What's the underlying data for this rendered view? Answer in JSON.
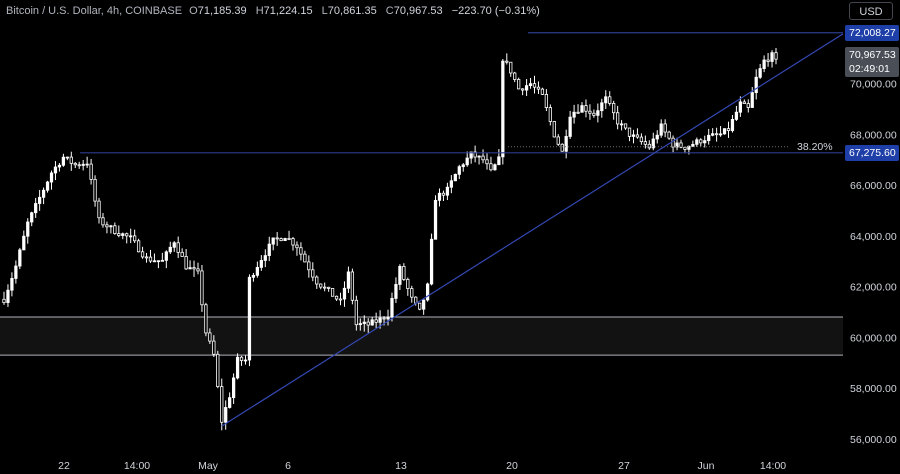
{
  "legend": {
    "title": "Bitcoin / U.S. Dollar, 4h, COINBASE",
    "o_label": "O",
    "o_value": "71,185.39",
    "h_label": "H",
    "h_value": "71,224.15",
    "l_label": "L",
    "l_value": "70,861.35",
    "c_label": "C",
    "c_value": "70,967.53",
    "change": "−223.70 (−0.31%)"
  },
  "currency_button": "USD",
  "price_tags": {
    "resistance": "72,008.27",
    "last_price": "70,967.53",
    "countdown": "02:49:01",
    "fib_level": "67,275.60"
  },
  "colors": {
    "background": "#000000",
    "candle": "#ffffff",
    "level_line": "#2c3b8c",
    "trend_line": "#3449b5",
    "tag_blue": "#1e3ea8",
    "tag_grey": "#4a4e57",
    "axis_text": "#d1d4dc",
    "zone_border": "#b0b3bb"
  },
  "chart_data": {
    "type": "candlestick",
    "symbol": "Bitcoin / U.S. Dollar",
    "interval": "4h",
    "ylim": [
      55400,
      73300
    ],
    "y_ticks": [
      56000,
      58000,
      60000,
      62000,
      64000,
      66000,
      68000,
      70000
    ],
    "y_tick_labels": [
      "56,000.00",
      "58,000.00",
      "60,000.00",
      "62,000.00",
      "64,000.00",
      "66,000.00",
      "68,000.00",
      "70,000.00"
    ],
    "x_tick_labels": [
      "22",
      "14:00",
      "May",
      "6",
      "13",
      "20",
      "27",
      "Jun",
      "14:00"
    ],
    "anchors": [
      {
        "t": 0,
        "p": 61500
      },
      {
        "t": 3,
        "p": 62800
      },
      {
        "t": 6,
        "p": 64500
      },
      {
        "t": 9,
        "p": 65500
      },
      {
        "t": 12,
        "p": 66500
      },
      {
        "t": 15,
        "p": 67100
      },
      {
        "t": 18,
        "p": 66800
      },
      {
        "t": 21,
        "p": 66900
      },
      {
        "t": 24,
        "p": 64600
      },
      {
        "t": 28,
        "p": 64200
      },
      {
        "t": 32,
        "p": 63900
      },
      {
        "t": 36,
        "p": 63100
      },
      {
        "t": 40,
        "p": 63000
      },
      {
        "t": 43,
        "p": 63800
      },
      {
        "t": 46,
        "p": 62800
      },
      {
        "t": 49,
        "p": 62500
      },
      {
        "t": 51,
        "p": 60200
      },
      {
        "t": 53,
        "p": 59300
      },
      {
        "t": 55,
        "p": 56700
      },
      {
        "t": 57,
        "p": 57700
      },
      {
        "t": 59,
        "p": 59100
      },
      {
        "t": 61,
        "p": 59100
      },
      {
        "t": 62,
        "p": 62300
      },
      {
        "t": 65,
        "p": 63100
      },
      {
        "t": 68,
        "p": 63800
      },
      {
        "t": 71,
        "p": 64000
      },
      {
        "t": 74,
        "p": 63600
      },
      {
        "t": 76,
        "p": 63000
      },
      {
        "t": 79,
        "p": 62200
      },
      {
        "t": 82,
        "p": 61800
      },
      {
        "t": 85,
        "p": 61400
      },
      {
        "t": 87,
        "p": 62500
      },
      {
        "t": 89,
        "p": 60500
      },
      {
        "t": 92,
        "p": 60500
      },
      {
        "t": 95,
        "p": 60700
      },
      {
        "t": 97,
        "p": 60900
      },
      {
        "t": 100,
        "p": 62700
      },
      {
        "t": 103,
        "p": 61500
      },
      {
        "t": 105,
        "p": 61000
      },
      {
        "t": 107,
        "p": 62000
      },
      {
        "t": 109,
        "p": 65500
      },
      {
        "t": 112,
        "p": 65800
      },
      {
        "t": 115,
        "p": 66700
      },
      {
        "t": 118,
        "p": 67200
      },
      {
        "t": 121,
        "p": 67000
      },
      {
        "t": 123,
        "p": 66500
      },
      {
        "t": 125,
        "p": 67000
      },
      {
        "t": 126,
        "p": 71000
      },
      {
        "t": 128,
        "p": 70500
      },
      {
        "t": 130,
        "p": 69800
      },
      {
        "t": 133,
        "p": 70000
      },
      {
        "t": 136,
        "p": 69500
      },
      {
        "t": 139,
        "p": 68000
      },
      {
        "t": 141,
        "p": 67300
      },
      {
        "t": 143,
        "p": 68800
      },
      {
        "t": 146,
        "p": 69100
      },
      {
        "t": 149,
        "p": 68800
      },
      {
        "t": 152,
        "p": 69400
      },
      {
        "t": 155,
        "p": 68500
      },
      {
        "t": 158,
        "p": 68000
      },
      {
        "t": 161,
        "p": 67700
      },
      {
        "t": 163,
        "p": 67500
      },
      {
        "t": 166,
        "p": 68300
      },
      {
        "t": 169,
        "p": 67600
      },
      {
        "t": 172,
        "p": 67500
      },
      {
        "t": 175,
        "p": 67700
      },
      {
        "t": 178,
        "p": 67900
      },
      {
        "t": 181,
        "p": 68000
      },
      {
        "t": 183,
        "p": 68200
      },
      {
        "t": 186,
        "p": 69200
      },
      {
        "t": 188,
        "p": 69000
      },
      {
        "t": 190,
        "p": 70200
      },
      {
        "t": 192,
        "p": 70900
      },
      {
        "t": 194,
        "p": 71100
      },
      {
        "t": 195,
        "p": 70968
      }
    ],
    "levels": [
      {
        "price": 72008.27,
        "label": "72,008.27"
      },
      {
        "price": 67275.6,
        "label": "67,275.60",
        "fib": "38.20%"
      }
    ],
    "support_zone": [
      59300,
      60800
    ],
    "trendline": [
      {
        "date": "May 1",
        "price": 56500
      },
      {
        "date": "Jun 4",
        "price": 70200
      }
    ],
    "last": {
      "open": 71185.39,
      "high": 71224.15,
      "low": 70861.35,
      "close": 70967.53,
      "change": -223.7,
      "change_pct": -0.31
    },
    "annotations": [
      "38.20%"
    ]
  }
}
